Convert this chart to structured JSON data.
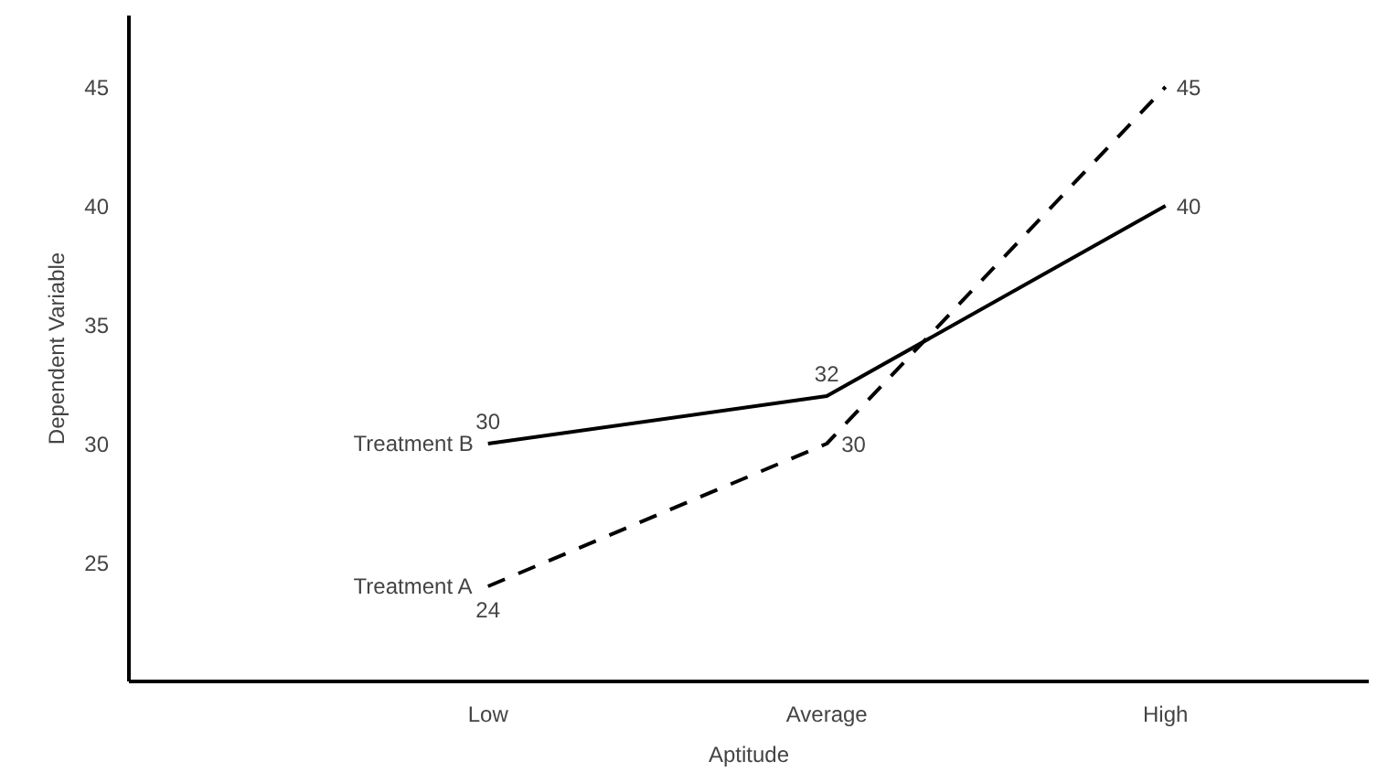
{
  "chart_data": {
    "type": "line",
    "xlabel": "Aptitude",
    "ylabel": "Dependent Variable",
    "categories": [
      "Low",
      "Average",
      "High"
    ],
    "series": [
      {
        "name": "Treatment B",
        "color": "#000000",
        "values": [
          30,
          32,
          40
        ],
        "line_style": "solid"
      },
      {
        "name": "Treatment A",
        "color": "#000000",
        "values": [
          24,
          30,
          45
        ],
        "line_style": "dashed"
      }
    ],
    "ylim": [
      20,
      48
    ],
    "yticks": [
      25,
      30,
      35,
      40,
      45
    ],
    "data_labels": true,
    "grid": false
  }
}
